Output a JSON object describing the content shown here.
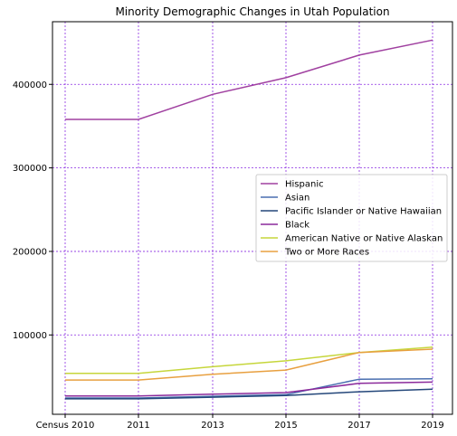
{
  "chart_data": {
    "type": "line",
    "title": "Minority Demographic Changes in Utah Population",
    "xlabel": "",
    "ylabel": "",
    "categories": [
      "Census 2010",
      "2011",
      "2013",
      "2015",
      "2017",
      "2019"
    ],
    "ylim": [
      5000,
      475000
    ],
    "yticks": [
      100000,
      200000,
      300000,
      400000
    ],
    "ytick_labels": [
      "100000",
      "200000",
      "300000",
      "400000"
    ],
    "grid": true,
    "grid_color": "#8a2be2",
    "legend_position": "center-right",
    "series": [
      {
        "name": "Hispanic",
        "color": "#a040a0",
        "values": [
          358000,
          358000,
          388000,
          408000,
          435000,
          453000
        ]
      },
      {
        "name": "Asian",
        "color": "#4a6fb0",
        "values": [
          24500,
          24500,
          26500,
          28500,
          47000,
          47500
        ]
      },
      {
        "name": "Pacific Islander or Native Hawaiian",
        "color": "#24477a",
        "values": [
          23500,
          23500,
          25500,
          27500,
          32000,
          35000
        ]
      },
      {
        "name": "Black",
        "color": "#8b2a9b",
        "values": [
          27000,
          27000,
          29000,
          31000,
          42000,
          43500
        ]
      },
      {
        "name": "American Native or Native Alaskan",
        "color": "#c6d63b",
        "values": [
          54000,
          54000,
          62000,
          69000,
          79000,
          85500
        ]
      },
      {
        "name": "Two or More Races",
        "color": "#e8a040",
        "values": [
          46000,
          46000,
          53000,
          58000,
          79000,
          83000
        ]
      }
    ]
  }
}
